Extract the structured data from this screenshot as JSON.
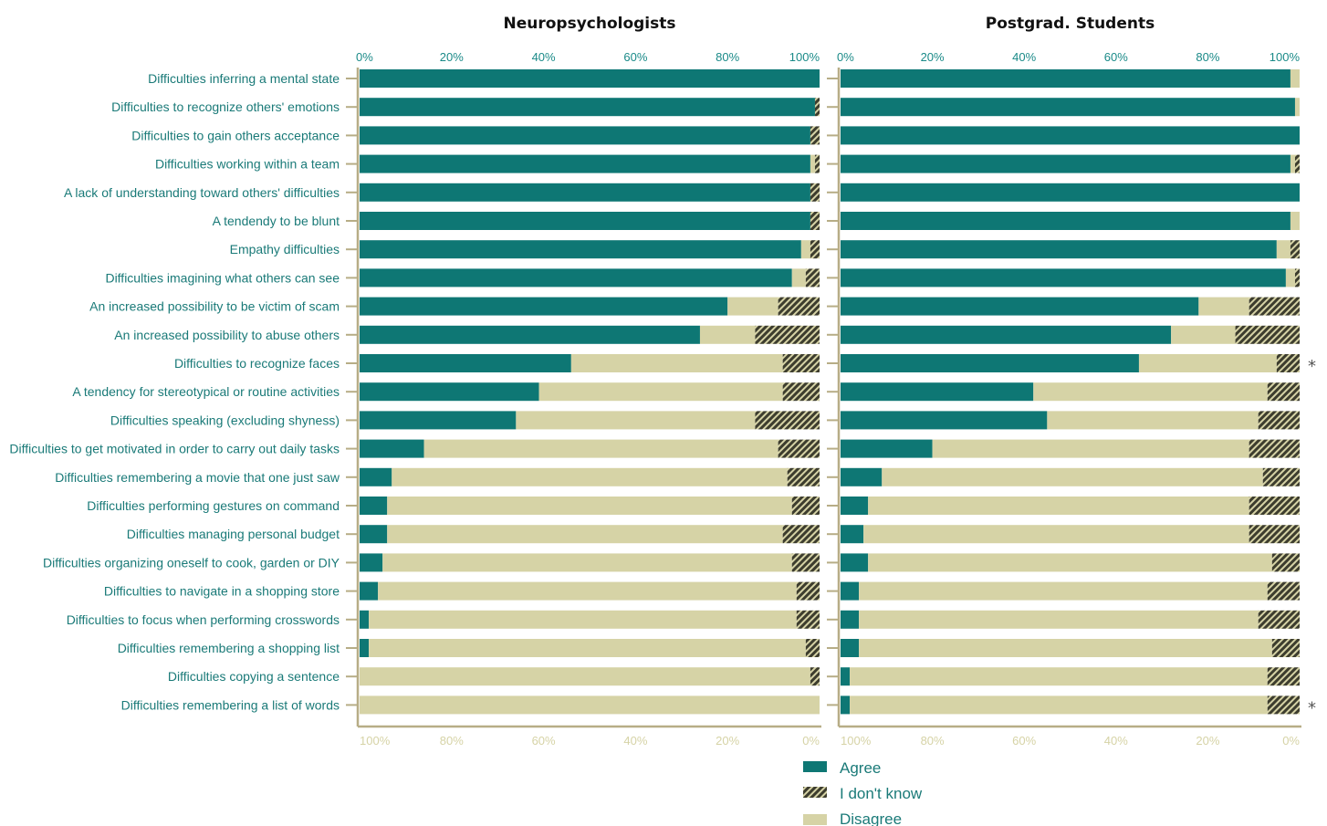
{
  "colors": {
    "agree": "#0e7774",
    "unknown": "#4a4a3a",
    "disagree": "#d6d3a6",
    "label": "#1a7a78",
    "axis": "#b7ad86"
  },
  "chart_data": {
    "type": "bar",
    "categories": [
      "Difficulties inferring a mental state",
      "Difficulties to recognize others' emotions",
      "Difficulties to gain others acceptance",
      "Difficulties working within a team",
      "A lack of understanding toward others' difficulties",
      "A tendendy to be blunt",
      "Empathy difficulties",
      "Difficulties imagining what others can see",
      "An increased possibility to be victim of scam",
      "An increased possibility to abuse others",
      "Difficulties to recognize faces",
      "A tendency for stereotypical or routine activities",
      "Difficulties speaking (excluding shyness)",
      "Difficulties to get motivated in order to carry out daily tasks",
      "Difficulties remembering a movie that one just saw",
      "Difficulties performing gestures on command",
      "Difficulties managing personal budget",
      "Difficulties organizing oneself to cook, garden or DIY",
      "Difficulties to navigate in a shopping store",
      "Difficulties to focus when performing crosswords",
      "Difficulties remembering a shopping list",
      "Difficulties copying a sentence",
      "Difficulties remembering a list of words"
    ],
    "top_ticks": [
      "0%",
      "20%",
      "40%",
      "60%",
      "80%",
      "100%"
    ],
    "bottom_ticks": [
      "100%",
      "80%",
      "60%",
      "40%",
      "20%",
      "0%"
    ],
    "legend": [
      "Agree",
      "I don't know",
      "Disagree"
    ],
    "panels": [
      {
        "title": "Neuropsychologists",
        "agree": [
          100,
          99,
          98,
          98,
          98,
          98,
          96,
          94,
          80,
          74,
          46,
          39,
          34,
          14,
          7,
          6,
          6,
          5,
          4,
          2,
          2,
          0,
          0
        ],
        "unknown": [
          0,
          1,
          2,
          1,
          2,
          2,
          2,
          3,
          9,
          14,
          8,
          8,
          14,
          9,
          7,
          6,
          8,
          6,
          5,
          5,
          3,
          2,
          0
        ],
        "markers": []
      },
      {
        "title": "Postgrad. Students",
        "agree": [
          98,
          99,
          100,
          98,
          100,
          98,
          95,
          97,
          78,
          72,
          65,
          42,
          45,
          20,
          9,
          6,
          5,
          6,
          4,
          4,
          4,
          2,
          2
        ],
        "unknown": [
          0,
          0,
          0,
          1,
          0,
          0,
          2,
          1,
          11,
          14,
          5,
          7,
          9,
          11,
          8,
          11,
          11,
          6,
          7,
          9,
          6,
          7,
          7
        ],
        "markers": [
          10,
          22
        ]
      }
    ],
    "marker_symbol": "*"
  }
}
